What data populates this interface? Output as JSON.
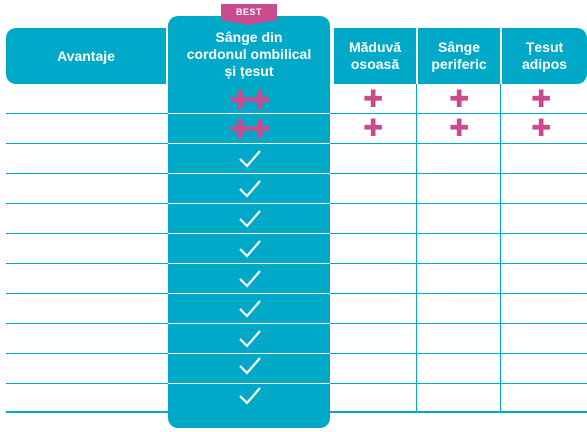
{
  "badge": "BEST",
  "headers": {
    "col0": "Avantaje",
    "col1_line1": "Sânge din",
    "col1_line2": "cordonul ombilical",
    "col1_line3": "și țesut",
    "col2_line1": "Măduvă",
    "col2_line2": "osoasă",
    "col3_line1": "Sânge",
    "col3_line2": "periferic",
    "col4_line1": "Țesut",
    "col4_line2": "adipos"
  },
  "plus_glyph": "✚",
  "double_plus_glyph": "✚✚",
  "rows": [
    {
      "c1": "double-plus",
      "c2": "plus",
      "c3": "plus",
      "c4": "plus"
    },
    {
      "c1": "double-plus",
      "c2": "plus",
      "c3": "plus",
      "c4": "plus"
    },
    {
      "c1": "check"
    },
    {
      "c1": "check"
    },
    {
      "c1": "check"
    },
    {
      "c1": "check"
    },
    {
      "c1": "check"
    },
    {
      "c1": "check"
    },
    {
      "c1": "check"
    },
    {
      "c1": "check"
    },
    {
      "c1": "check"
    }
  ],
  "colors": {
    "teal": "#00a9c7",
    "magenta": "#c94b8f",
    "white": "#ffffff"
  }
}
